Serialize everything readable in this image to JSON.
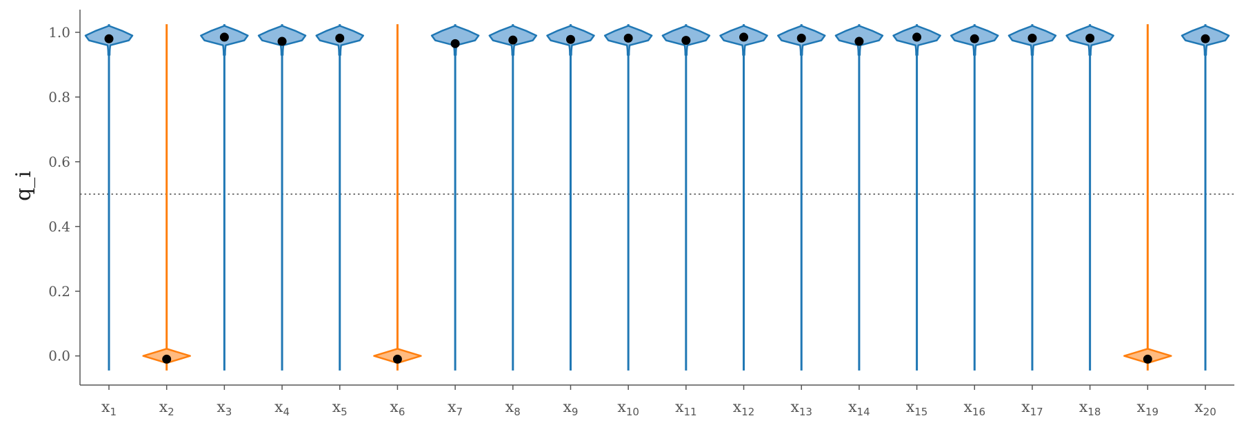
{
  "chart_data": {
    "type": "violin",
    "title": "",
    "xlabel": "",
    "ylabel": "q_i",
    "ylim": [
      -0.09,
      1.07
    ],
    "yticks": [
      "0.0",
      "0.2",
      "0.4",
      "0.6",
      "0.8",
      "1.0"
    ],
    "threshold": 0.5,
    "grid": false,
    "colors": {
      "selected": "#1f77b4",
      "not_selected": "#ff7f0e",
      "threshold": "#777777",
      "marker": "#000000"
    },
    "categories": [
      {
        "base": "x",
        "sub": "1",
        "mean": 0.98,
        "selected": true
      },
      {
        "base": "x",
        "sub": "2",
        "mean": -0.01,
        "selected": false
      },
      {
        "base": "x",
        "sub": "3",
        "mean": 0.985,
        "selected": true
      },
      {
        "base": "x",
        "sub": "4",
        "mean": 0.972,
        "selected": true
      },
      {
        "base": "x",
        "sub": "5",
        "mean": 0.982,
        "selected": true
      },
      {
        "base": "x",
        "sub": "6",
        "mean": -0.01,
        "selected": false
      },
      {
        "base": "x",
        "sub": "7",
        "mean": 0.965,
        "selected": true
      },
      {
        "base": "x",
        "sub": "8",
        "mean": 0.976,
        "selected": true
      },
      {
        "base": "x",
        "sub": "9",
        "mean": 0.978,
        "selected": true
      },
      {
        "base": "x",
        "sub": "10",
        "mean": 0.982,
        "selected": true
      },
      {
        "base": "x",
        "sub": "11",
        "mean": 0.975,
        "selected": true
      },
      {
        "base": "x",
        "sub": "12",
        "mean": 0.985,
        "selected": true
      },
      {
        "base": "x",
        "sub": "13",
        "mean": 0.982,
        "selected": true
      },
      {
        "base": "x",
        "sub": "14",
        "mean": 0.972,
        "selected": true
      },
      {
        "base": "x",
        "sub": "15",
        "mean": 0.985,
        "selected": true
      },
      {
        "base": "x",
        "sub": "16",
        "mean": 0.98,
        "selected": true
      },
      {
        "base": "x",
        "sub": "17",
        "mean": 0.982,
        "selected": true
      },
      {
        "base": "x",
        "sub": "18",
        "mean": 0.982,
        "selected": true
      },
      {
        "base": "x",
        "sub": "19",
        "mean": -0.01,
        "selected": false
      },
      {
        "base": "x",
        "sub": "20",
        "mean": 0.98,
        "selected": true
      }
    ]
  }
}
